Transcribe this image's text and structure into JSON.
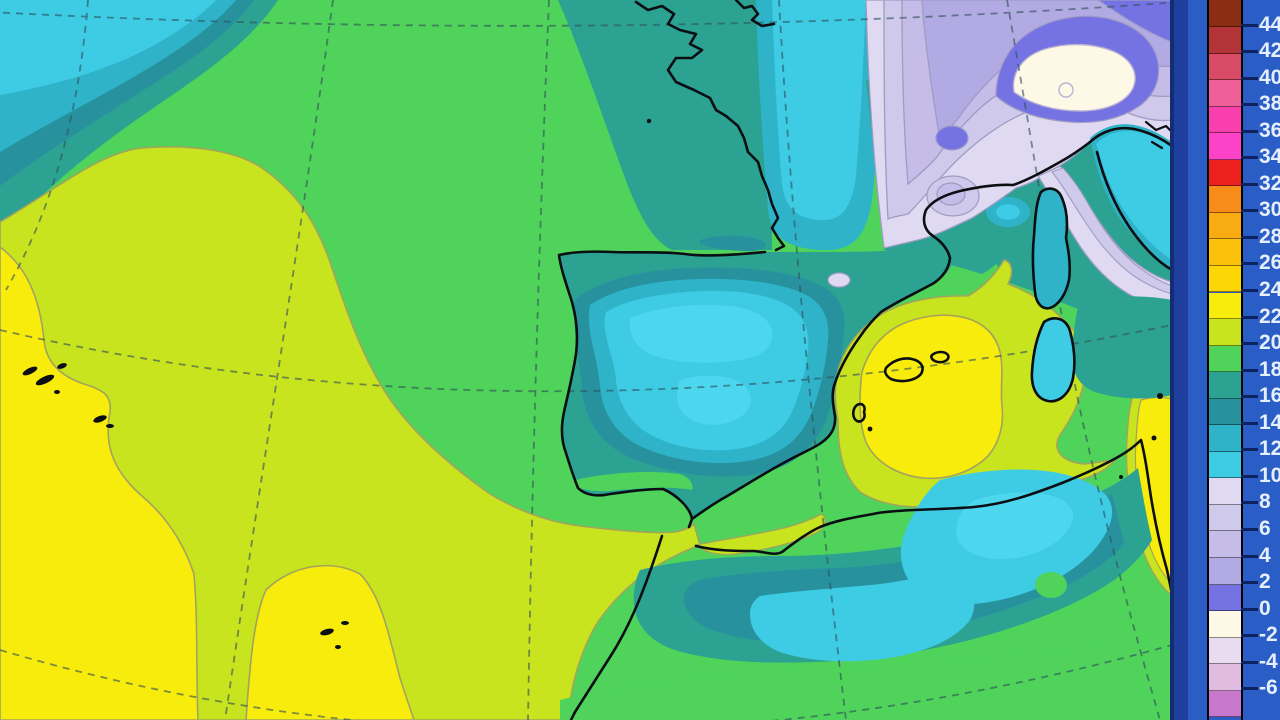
{
  "map": {
    "description": "Surface temperature contour map of the Iberian Peninsula, France and the western Mediterranean",
    "palette": {
      "t22": "#f8ec0c",
      "t20": "#c8e41e",
      "t18": "#4fd35a",
      "t16": "#2ca293",
      "t14": "#27929e",
      "t12": "#2fb3c9",
      "t10": "#3ecbe4",
      "t10b": "#4cd7ee",
      "t8": "#dfdaf2",
      "t6": "#cfc9eb",
      "t4": "#c5bce8",
      "t2": "#b1aae3",
      "t0": "#7573e3",
      "tm2": "#fdf9e6",
      "coast": "#0b0e12",
      "contourWarm": "#a3a35c",
      "contourCool": "#9e9cc4",
      "contourTeal": "#2b7f8c",
      "grid": "#31505a",
      "whiteRing": "#b9b2d4"
    }
  },
  "panel": {
    "background": "#2a5ec6",
    "edge_stripe": "#1e3f9e",
    "map_border": "#132c72",
    "tick_color": "#0e2260",
    "label_color": "#e6effd"
  },
  "legend": {
    "first_cell_height": 27,
    "cell_height": 26.55,
    "cells": [
      {
        "color": "#8a2d12",
        "label": "44"
      },
      {
        "color": "#b23439",
        "label": "42"
      },
      {
        "color": "#d84a66",
        "label": "40"
      },
      {
        "color": "#ee5f9a",
        "label": "38"
      },
      {
        "color": "#f93fae",
        "label": "36"
      },
      {
        "color": "#fc42c6",
        "label": "34"
      },
      {
        "color": "#ee1f1f",
        "label": "32"
      },
      {
        "color": "#f78c1b",
        "label": "30"
      },
      {
        "color": "#f9ac12",
        "label": "28"
      },
      {
        "color": "#fbc10b",
        "label": "26"
      },
      {
        "color": "#fcd705",
        "label": "24"
      },
      {
        "color": "#f8ec0c",
        "label": "22"
      },
      {
        "color": "#c8e41e",
        "label": "20"
      },
      {
        "color": "#4fd35a",
        "label": "18"
      },
      {
        "color": "#2ca293",
        "label": "16"
      },
      {
        "color": "#27929e",
        "label": "14"
      },
      {
        "color": "#2fb3c9",
        "label": "12"
      },
      {
        "color": "#3ecbe4",
        "label": "10"
      },
      {
        "color": "#dfdaf2",
        "label": "8"
      },
      {
        "color": "#cfc9eb",
        "label": "6"
      },
      {
        "color": "#c5bce8",
        "label": "4"
      },
      {
        "color": "#b1aae3",
        "label": "2"
      },
      {
        "color": "#7573e3",
        "label": "0"
      },
      {
        "color": "#fdf9e6",
        "label": "-2"
      },
      {
        "color": "#e9dcf1",
        "label": "-4"
      },
      {
        "color": "#e2bce0",
        "label": "-6"
      },
      {
        "color": "#c878cc",
        "label": ""
      }
    ]
  }
}
